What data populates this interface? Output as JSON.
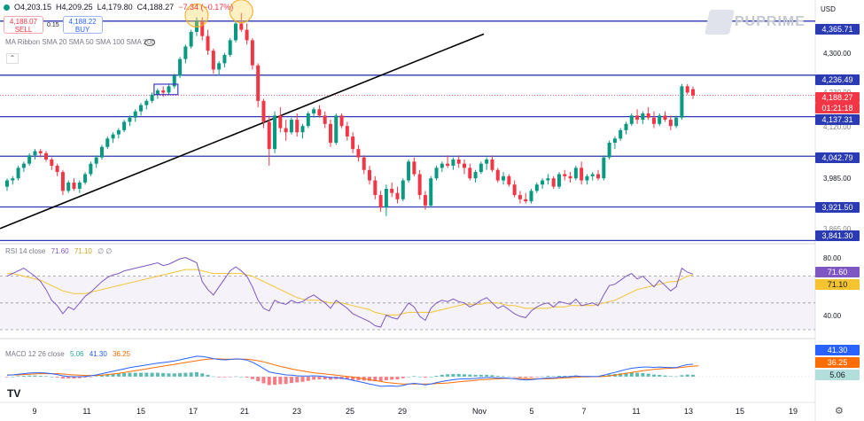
{
  "header": {
    "ohlc": {
      "open": "O4,203.15",
      "high": "H4,209.25",
      "low": "L4,179.80",
      "close": "C4,188.27",
      "change": "−7.34 (−0.17%)"
    },
    "sell": {
      "price": "4,188.07",
      "label": "SELL"
    },
    "spread": "0.15",
    "buy": {
      "price": "4,188.22",
      "label": "BUY"
    },
    "indicator": "MA Ribbon SMA 20 SMA 50 SMA 100 SMA 200",
    "currency": "USD",
    "brand": "PUPRIME"
  },
  "price_scale": {
    "ticks": [
      "4,300.00",
      "4,230.00",
      "4,120.00",
      "3,985.00",
      "3,865.00"
    ],
    "levels": [
      {
        "label": "4,365.71",
        "value": 4365.71
      },
      {
        "label": "4,236.49",
        "value": 4236.49
      },
      {
        "label": "4,137.31",
        "value": 4137.31
      },
      {
        "label": "4,042.79",
        "value": 4042.79
      },
      {
        "label": "3,921.50",
        "value": 3921.5
      },
      {
        "label": "3,841.30",
        "value": 3841.3
      }
    ],
    "last_price": "4,188.27",
    "countdown": "01:21:18"
  },
  "rsi": {
    "label": "RSI 14 close",
    "rsi_value": "71.60",
    "ma_value": "71.10",
    "extra": "∅ ∅",
    "ticks": [
      "80.00",
      "40.00"
    ],
    "badge_rsi": "71.60",
    "badge_ma": "71.10"
  },
  "macd": {
    "label": "MACD 12 26 close",
    "hist_value": "5.06",
    "macd_value": "41.30",
    "signal_value": "36.25",
    "badge_macd": "41.30",
    "badge_signal": "36.25",
    "badge_hist": "5.06"
  },
  "x_axis": [
    {
      "label": "9",
      "x": 39
    },
    {
      "label": "11",
      "x": 98
    },
    {
      "label": "15",
      "x": 159
    },
    {
      "label": "17",
      "x": 218
    },
    {
      "label": "21",
      "x": 276
    },
    {
      "label": "23",
      "x": 335
    },
    {
      "label": "25",
      "x": 395
    },
    {
      "label": "29",
      "x": 454
    },
    {
      "label": "Nov",
      "x": 541
    },
    {
      "label": "5",
      "x": 600
    },
    {
      "label": "7",
      "x": 659
    },
    {
      "label": "11",
      "x": 718
    },
    {
      "label": "13",
      "x": 777
    },
    {
      "label": "15",
      "x": 835
    },
    {
      "label": "19",
      "x": 895
    }
  ],
  "colors": {
    "up": "#089981",
    "down": "#f23645",
    "level": "#2a3bb3",
    "rsi": "#7e57c2",
    "rsi_ma": "#f4c430",
    "macd": "#2962ff",
    "signal": "#ff6d00"
  },
  "chart_data": {
    "type": "candlestick",
    "title": "",
    "y_range": [
      3840,
      4395
    ],
    "horizontal_levels": [
      4365.71,
      4236.49,
      4137.31,
      4042.79,
      3921.5,
      3841.3
    ],
    "trendline": {
      "from": 3870,
      "to": 4335
    },
    "ohlc": [
      [
        3970,
        3990,
        3960,
        3985
      ],
      [
        3985,
        3995,
        3975,
        3990
      ],
      [
        3990,
        4020,
        3985,
        4015
      ],
      [
        4015,
        4030,
        4005,
        4025
      ],
      [
        4025,
        4050,
        4020,
        4045
      ],
      [
        4045,
        4060,
        4035,
        4055
      ],
      [
        4055,
        4060,
        4040,
        4050
      ],
      [
        4050,
        4055,
        4030,
        4035
      ],
      [
        4035,
        4040,
        4010,
        4020
      ],
      [
        4020,
        4025,
        3995,
        4005
      ],
      [
        4005,
        4010,
        3950,
        3960
      ],
      [
        3960,
        3985,
        3955,
        3980
      ],
      [
        3980,
        3990,
        3960,
        3965
      ],
      [
        3965,
        3985,
        3955,
        3980
      ],
      [
        3980,
        4005,
        3975,
        4000
      ],
      [
        4000,
        4030,
        3995,
        4025
      ],
      [
        4025,
        4045,
        4015,
        4040
      ],
      [
        4040,
        4070,
        4035,
        4065
      ],
      [
        4065,
        4090,
        4060,
        4085
      ],
      [
        4085,
        4100,
        4075,
        4095
      ],
      [
        4095,
        4110,
        4085,
        4105
      ],
      [
        4105,
        4130,
        4100,
        4125
      ],
      [
        4125,
        4140,
        4115,
        4135
      ],
      [
        4135,
        4155,
        4125,
        4150
      ],
      [
        4150,
        4170,
        4140,
        4165
      ],
      [
        4165,
        4180,
        4155,
        4175
      ],
      [
        4175,
        4195,
        4170,
        4190
      ],
      [
        4190,
        4205,
        4180,
        4200
      ],
      [
        4200,
        4210,
        4185,
        4195
      ],
      [
        4195,
        4215,
        4190,
        4210
      ],
      [
        4210,
        4240,
        4205,
        4235
      ],
      [
        4235,
        4280,
        4230,
        4275
      ],
      [
        4275,
        4310,
        4265,
        4305
      ],
      [
        4305,
        4345,
        4300,
        4340
      ],
      [
        4340,
        4375,
        4330,
        4365
      ],
      [
        4365,
        4375,
        4320,
        4330
      ],
      [
        4330,
        4345,
        4285,
        4295
      ],
      [
        4295,
        4300,
        4240,
        4250
      ],
      [
        4250,
        4270,
        4235,
        4265
      ],
      [
        4265,
        4290,
        4255,
        4285
      ],
      [
        4285,
        4325,
        4280,
        4320
      ],
      [
        4320,
        4365,
        4315,
        4360
      ],
      [
        4360,
        4385,
        4340,
        4345
      ],
      [
        4345,
        4360,
        4310,
        4320
      ],
      [
        4320,
        4325,
        4250,
        4260
      ],
      [
        4260,
        4265,
        4160,
        4175
      ],
      [
        4175,
        4180,
        4110,
        4125
      ],
      [
        4125,
        4140,
        4020,
        4060
      ],
      [
        4060,
        4150,
        4050,
        4140
      ],
      [
        4140,
        4160,
        4100,
        4110
      ],
      [
        4110,
        4130,
        4080,
        4100
      ],
      [
        4100,
        4135,
        4095,
        4130
      ],
      [
        4130,
        4145,
        4090,
        4100
      ],
      [
        4100,
        4120,
        4085,
        4115
      ],
      [
        4115,
        4150,
        4110,
        4145
      ],
      [
        4145,
        4160,
        4135,
        4155
      ],
      [
        4155,
        4165,
        4135,
        4140
      ],
      [
        4140,
        4150,
        4110,
        4120
      ],
      [
        4120,
        4130,
        4065,
        4075
      ],
      [
        4075,
        4145,
        4070,
        4140
      ],
      [
        4140,
        4145,
        4110,
        4115
      ],
      [
        4115,
        4125,
        4080,
        4090
      ],
      [
        4090,
        4100,
        4050,
        4060
      ],
      [
        4060,
        4070,
        4030,
        4040
      ],
      [
        4040,
        4045,
        4000,
        4010
      ],
      [
        4010,
        4020,
        3975,
        3985
      ],
      [
        3985,
        3995,
        3940,
        3950
      ],
      [
        3950,
        3960,
        3910,
        3920
      ],
      [
        3920,
        3975,
        3900,
        3965
      ],
      [
        3965,
        3980,
        3945,
        3955
      ],
      [
        3955,
        3970,
        3930,
        3940
      ],
      [
        3940,
        3990,
        3935,
        3985
      ],
      [
        3985,
        4035,
        3980,
        4030
      ],
      [
        4030,
        4040,
        3995,
        4000
      ],
      [
        4000,
        4010,
        3940,
        3950
      ],
      [
        3950,
        3960,
        3915,
        3925
      ],
      [
        3925,
        3995,
        3920,
        3990
      ],
      [
        3990,
        4020,
        3985,
        4015
      ],
      [
        4015,
        4030,
        4005,
        4025
      ],
      [
        4025,
        4045,
        4015,
        4020
      ],
      [
        4020,
        4040,
        4010,
        4035
      ],
      [
        4035,
        4045,
        4015,
        4025
      ],
      [
        4025,
        4035,
        4000,
        4015
      ],
      [
        4015,
        4025,
        3985,
        3990
      ],
      [
        3990,
        4010,
        3980,
        4005
      ],
      [
        4005,
        4030,
        4000,
        4025
      ],
      [
        4025,
        4040,
        4010,
        4035
      ],
      [
        4035,
        4045,
        4005,
        4010
      ],
      [
        4010,
        4015,
        3980,
        3985
      ],
      [
        3985,
        4005,
        3975,
        3995
      ],
      [
        3995,
        4000,
        3970,
        3975
      ],
      [
        3975,
        3985,
        3945,
        3950
      ],
      [
        3950,
        3960,
        3930,
        3940
      ],
      [
        3940,
        3955,
        3930,
        3935
      ],
      [
        3935,
        3965,
        3930,
        3960
      ],
      [
        3960,
        3980,
        3955,
        3975
      ],
      [
        3975,
        3990,
        3965,
        3985
      ],
      [
        3985,
        4000,
        3975,
        3990
      ],
      [
        3990,
        3995,
        3965,
        3970
      ],
      [
        3970,
        4005,
        3965,
        4000
      ],
      [
        4000,
        4010,
        3985,
        3995
      ],
      [
        3995,
        4005,
        3980,
        3990
      ],
      [
        3990,
        4020,
        3985,
        4015
      ],
      [
        4015,
        4030,
        3975,
        3985
      ],
      [
        3985,
        4000,
        3975,
        3995
      ],
      [
        3995,
        4005,
        3985,
        4000
      ],
      [
        4000,
        4010,
        3985,
        3990
      ],
      [
        3990,
        4045,
        3985,
        4040
      ],
      [
        4040,
        4080,
        4035,
        4075
      ],
      [
        4075,
        4090,
        4060,
        4085
      ],
      [
        4085,
        4110,
        4080,
        4105
      ],
      [
        4105,
        4125,
        4095,
        4120
      ],
      [
        4120,
        4145,
        4115,
        4140
      ],
      [
        4140,
        4155,
        4120,
        4130
      ],
      [
        4130,
        4150,
        4120,
        4145
      ],
      [
        4145,
        4160,
        4130,
        4135
      ],
      [
        4135,
        4150,
        4110,
        4120
      ],
      [
        4120,
        4145,
        4115,
        4140
      ],
      [
        4140,
        4150,
        4125,
        4130
      ],
      [
        4130,
        4140,
        4105,
        4115
      ],
      [
        4115,
        4140,
        4110,
        4135
      ],
      [
        4135,
        4215,
        4130,
        4210
      ],
      [
        4210,
        4215,
        4190,
        4195
      ],
      [
        4203.15,
        4209.25,
        4179.8,
        4188.27
      ]
    ],
    "rsi": [
      70,
      72,
      74,
      76,
      73,
      70,
      66,
      60,
      52,
      48,
      42,
      47,
      45,
      50,
      55,
      58,
      62,
      66,
      69,
      71,
      72,
      74,
      75,
      76,
      77,
      78,
      79,
      80,
      78,
      79,
      81,
      83,
      84,
      82,
      80,
      66,
      60,
      56,
      62,
      68,
      74,
      77,
      74,
      70,
      62,
      52,
      46,
      44,
      52,
      50,
      49,
      52,
      50,
      51,
      54,
      56,
      53,
      50,
      46,
      52,
      49,
      46,
      42,
      40,
      38,
      36,
      33,
      32,
      41,
      39,
      38,
      44,
      50,
      47,
      40,
      37,
      46,
      50,
      52,
      51,
      53,
      51,
      50,
      47,
      49,
      52,
      54,
      50,
      46,
      48,
      45,
      42,
      40,
      39,
      44,
      47,
      49,
      50,
      47,
      51,
      50,
      49,
      53,
      48,
      49,
      50,
      48,
      56,
      63,
      64,
      67,
      70,
      72,
      68,
      70,
      66,
      62,
      67,
      63,
      59,
      62,
      76,
      73,
      71.6
    ],
    "rsi_ma": [
      72,
      72,
      71,
      70,
      69,
      68,
      67,
      65,
      63,
      61,
      59,
      58,
      57,
      57,
      57,
      58,
      59,
      60,
      61,
      62,
      63,
      64,
      65,
      66,
      67,
      68,
      69,
      70,
      71,
      72,
      73,
      74,
      75,
      75,
      75,
      74,
      73,
      72,
      72,
      72,
      72,
      72,
      72,
      71,
      70,
      68,
      66,
      64,
      62,
      60,
      58,
      56,
      54,
      53,
      52,
      52,
      52,
      51,
      50,
      50,
      50,
      49,
      48,
      47,
      46,
      45,
      43,
      42,
      41,
      41,
      41,
      42,
      43,
      43,
      43,
      43,
      43,
      44,
      45,
      46,
      47,
      48,
      49,
      49,
      49,
      49,
      50,
      50,
      50,
      49,
      48,
      48,
      47,
      46,
      46,
      46,
      46,
      46,
      47,
      47,
      47,
      48,
      48,
      48,
      48,
      48,
      49,
      50,
      51,
      52,
      54,
      56,
      58,
      60,
      61,
      62,
      63,
      64,
      65,
      66,
      66,
      68,
      70,
      71.1
    ],
    "macd": [
      5,
      6,
      8,
      10,
      12,
      13,
      13,
      12,
      10,
      7,
      3,
      1,
      0,
      0,
      1,
      3,
      6,
      10,
      14,
      18,
      22,
      26,
      30,
      33,
      36,
      39,
      42,
      45,
      47,
      49,
      52,
      56,
      60,
      64,
      68,
      67,
      64,
      60,
      57,
      56,
      57,
      59,
      58,
      55,
      48,
      38,
      27,
      16,
      12,
      9,
      6,
      5,
      3,
      2,
      2,
      3,
      2,
      0,
      -3,
      -3,
      -5,
      -8,
      -12,
      -16,
      -20,
      -24,
      -28,
      -32,
      -31,
      -31,
      -32,
      -29,
      -24,
      -22,
      -24,
      -27,
      -24,
      -20,
      -16,
      -13,
      -10,
      -8,
      -7,
      -7,
      -6,
      -4,
      -3,
      -3,
      -4,
      -4,
      -5,
      -7,
      -9,
      -11,
      -10,
      -8,
      -6,
      -4,
      -4,
      -2,
      -1,
      0,
      2,
      1,
      1,
      1,
      1,
      5,
      10,
      14,
      19,
      24,
      28,
      30,
      32,
      32,
      31,
      32,
      31,
      30,
      30,
      36,
      40,
      41.3
    ],
    "signal": [
      6,
      6,
      6,
      7,
      8,
      9,
      10,
      10,
      10,
      10,
      9,
      7,
      6,
      5,
      4,
      4,
      4,
      5,
      7,
      9,
      11,
      14,
      17,
      20,
      23,
      26,
      29,
      32,
      35,
      38,
      41,
      44,
      47,
      50,
      53,
      56,
      58,
      59,
      59,
      58,
      58,
      58,
      58,
      58,
      56,
      53,
      49,
      44,
      39,
      34,
      30,
      26,
      22,
      19,
      16,
      13,
      11,
      9,
      7,
      5,
      3,
      1,
      -1,
      -4,
      -7,
      -10,
      -13,
      -16,
      -19,
      -21,
      -23,
      -24,
      -24,
      -24,
      -24,
      -24,
      -24,
      -23,
      -22,
      -21,
      -19,
      -17,
      -15,
      -14,
      -12,
      -10,
      -9,
      -8,
      -7,
      -6,
      -6,
      -6,
      -6,
      -7,
      -7,
      -7,
      -7,
      -7,
      -6,
      -5,
      -4,
      -3,
      -2,
      -1,
      -1,
      0,
      0,
      1,
      3,
      5,
      8,
      11,
      14,
      17,
      20,
      22,
      24,
      26,
      27,
      28,
      29,
      31,
      33,
      35,
      36.25
    ]
  }
}
